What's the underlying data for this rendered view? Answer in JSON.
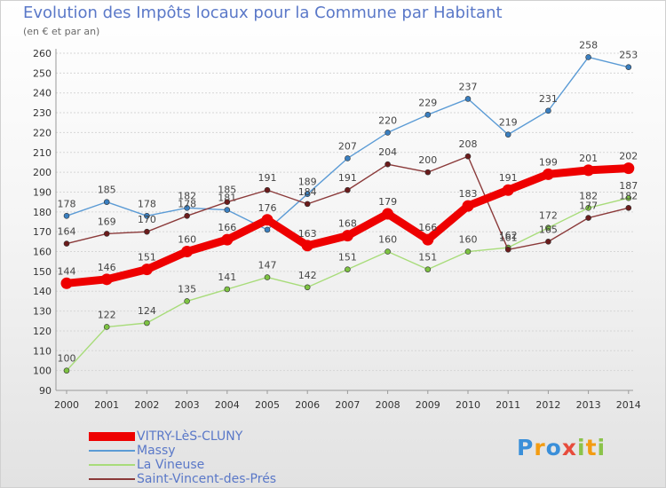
{
  "title": "Evolution des Impôts locaux pour la Commune par Habitant",
  "subtitle": "(en € et par an)",
  "chart_data": {
    "type": "line",
    "x": [
      "2000",
      "2001",
      "2002",
      "2003",
      "2004",
      "2005",
      "2006",
      "2007",
      "2008",
      "2009",
      "2010",
      "2011",
      "2012",
      "2013",
      "2014"
    ],
    "ylim": [
      90,
      260
    ],
    "yticks": [
      90,
      100,
      110,
      120,
      130,
      140,
      150,
      160,
      170,
      180,
      190,
      200,
      210,
      220,
      230,
      240,
      250,
      260
    ],
    "grid": true,
    "legend_position": "bottom-left",
    "series": [
      {
        "name": "Massy",
        "color": "#5b9bd5",
        "point_color": "#3a7fc0",
        "values": [
          178,
          185,
          178,
          182,
          181,
          171,
          189,
          207,
          220,
          229,
          237,
          219,
          231,
          258,
          253
        ],
        "labels": [
          "178",
          "185",
          "178",
          "182",
          "181",
          "",
          "189",
          "207",
          "220",
          "229",
          "237",
          "219",
          "231",
          "258",
          "253"
        ]
      },
      {
        "name": "La Vineuse",
        "color": "#a8dc7a",
        "point_color": "#7dc242",
        "values": [
          100,
          122,
          124,
          135,
          141,
          147,
          142,
          151,
          160,
          151,
          160,
          162,
          172,
          182,
          187
        ],
        "labels": [
          "100",
          "122",
          "124",
          "135",
          "141",
          "147",
          "142",
          "151",
          "160",
          "151",
          "160",
          "162",
          "172",
          "182",
          "187"
        ]
      },
      {
        "name": "Saint-Vincent-des-Prés",
        "color": "#8b3a3a",
        "point_color": "#6b1c1c",
        "values": [
          164,
          169,
          170,
          178,
          185,
          191,
          184,
          191,
          204,
          200,
          208,
          161,
          165,
          177,
          182
        ],
        "labels": [
          "164",
          "169",
          "170",
          "178",
          "185",
          "191",
          "184",
          "191",
          "204",
          "200",
          "208",
          "161",
          "165",
          "177",
          "182"
        ]
      },
      {
        "name": "VITRY-LèS-CLUNY",
        "color": "#ee0000",
        "point_color": "#ee0000",
        "values": [
          144,
          146,
          151,
          160,
          166,
          176,
          163,
          168,
          179,
          166,
          183,
          191,
          199,
          201,
          202
        ],
        "labels": [
          "144",
          "146",
          "151",
          "160",
          "166",
          "176",
          "163",
          "168",
          "179",
          "166",
          "183",
          "191",
          "199",
          "201",
          "202"
        ]
      }
    ],
    "legend": [
      "VITRY-LèS-CLUNY",
      "Massy",
      "La Vineuse",
      "Saint-Vincent-des-Prés"
    ]
  },
  "legend_items": [
    {
      "label": "VITRY-LèS-CLUNY",
      "color": "#ee0000",
      "thickness": 10
    },
    {
      "label": "Massy",
      "color": "#5b9bd5",
      "thickness": 2
    },
    {
      "label": "La Vineuse",
      "color": "#a8dc7a",
      "thickness": 2
    },
    {
      "label": "Saint-Vincent-des-Prés",
      "color": "#8b3a3a",
      "thickness": 2
    }
  ],
  "logo": {
    "letters": [
      "P",
      "r",
      "o",
      "x",
      "i",
      "t",
      "i"
    ],
    "colors": [
      "#3a8fd9",
      "#f39c12",
      "#3a8fd9",
      "#e74c3c",
      "#8bc34a",
      "#f39c12",
      "#8bc34a"
    ]
  }
}
